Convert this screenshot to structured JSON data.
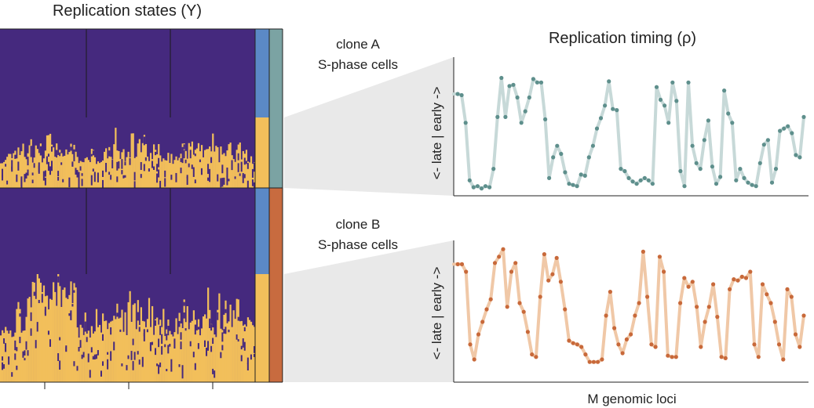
{
  "heatmap": {
    "title": "Replication states (Y)",
    "colors": {
      "unreplicated": "#45297e",
      "replicated": "#f2bf5b",
      "g1_band": "#5b89c6",
      "clone_a": "#7ba3a3",
      "clone_b": "#c86b3f"
    }
  },
  "clones": [
    {
      "label_line1": "clone A",
      "label_line2": "S-phase cells",
      "color": "#5e8f8c",
      "line_color": "#c7d9d8"
    },
    {
      "label_line1": "clone B",
      "label_line2": "S-phase cells",
      "color": "#c8693a",
      "line_color": "#f0c8a7"
    }
  ],
  "panel": {
    "title": "Replication timing (ρ)",
    "ylabel": "<- late | early ->",
    "xlabel": "M genomic loci"
  },
  "chart_data": [
    {
      "type": "line",
      "name": "clone A",
      "ylim": [
        0,
        1
      ],
      "values": [
        0.85,
        0.85,
        0.84,
        0.6,
        0.1,
        0.04,
        0.05,
        0.03,
        0.05,
        0.04,
        0.2,
        0.65,
        0.99,
        0.65,
        0.92,
        0.93,
        0.82,
        0.6,
        0.7,
        0.82,
        0.98,
        0.95,
        0.95,
        0.63,
        0.12,
        0.3,
        0.4,
        0.33,
        0.17,
        0.07,
        0.06,
        0.05,
        0.15,
        0.14,
        0.3,
        0.4,
        0.55,
        0.64,
        0.75,
        0.96,
        0.72,
        0.71,
        0.2,
        0.18,
        0.12,
        0.09,
        0.07,
        0.1,
        0.12,
        0.1,
        0.07,
        0.91,
        0.8,
        0.75,
        0.6,
        0.95,
        0.79,
        0.18,
        0.05,
        0.95,
        0.4,
        0.25,
        0.2,
        0.45,
        0.62,
        0.22,
        0.07,
        0.13,
        0.88,
        0.68,
        0.6,
        0.1,
        0.2,
        0.12,
        0.08,
        0.06,
        0.05,
        0.25,
        0.41,
        0.45,
        0.08,
        0.2,
        0.53,
        0.55,
        0.57,
        0.51,
        0.32,
        0.3,
        0.65
      ]
    },
    {
      "type": "line",
      "name": "clone B",
      "ylim": [
        0,
        1
      ],
      "values": [
        0.86,
        0.86,
        0.86,
        0.8,
        0.22,
        0.1,
        0.3,
        0.4,
        0.5,
        0.58,
        0.87,
        0.92,
        0.98,
        0.52,
        0.8,
        0.87,
        0.55,
        0.48,
        0.32,
        0.14,
        0.12,
        0.6,
        0.94,
        0.73,
        0.78,
        0.91,
        0.72,
        0.5,
        0.25,
        0.23,
        0.22,
        0.2,
        0.14,
        0.08,
        0.08,
        0.08,
        0.1,
        0.45,
        0.64,
        0.35,
        0.22,
        0.15,
        0.26,
        0.3,
        0.45,
        0.55,
        0.96,
        0.6,
        0.22,
        0.2,
        0.92,
        0.8,
        0.13,
        0.12,
        0.12,
        0.55,
        0.75,
        0.68,
        0.72,
        0.52,
        0.2,
        0.4,
        0.52,
        0.7,
        0.44,
        0.12,
        0.11,
        0.66,
        0.74,
        0.73,
        0.76,
        0.75,
        0.8,
        0.22,
        0.12,
        0.7,
        0.62,
        0.55,
        0.4,
        0.22,
        0.1,
        0.66,
        0.6,
        0.3,
        0.2,
        0.45
      ]
    }
  ]
}
